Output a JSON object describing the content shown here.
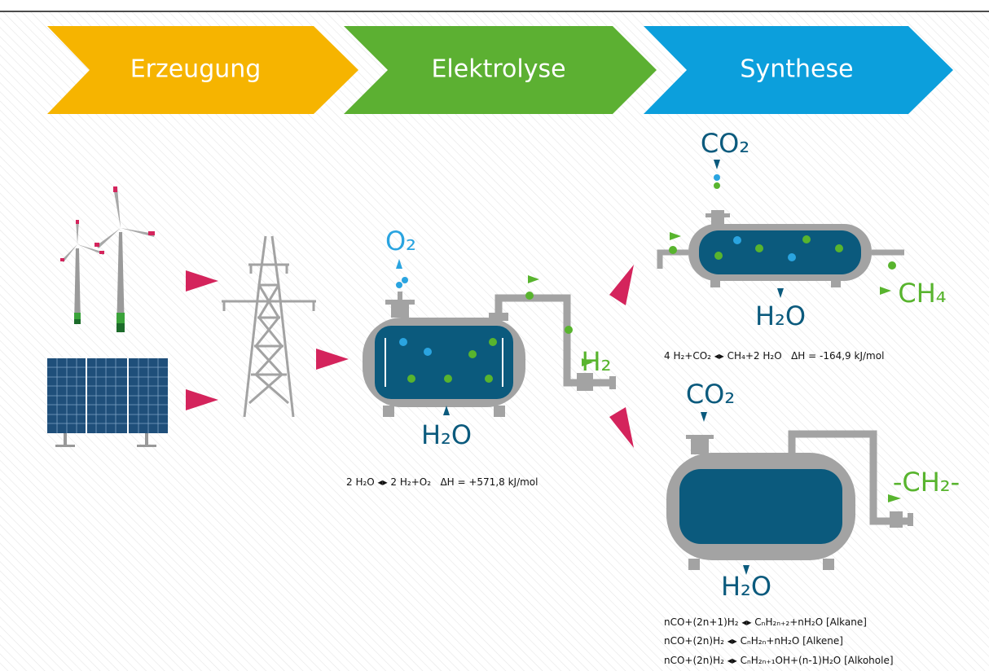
{
  "header": {
    "steps": [
      "Erzeugung",
      "Elektrolyse",
      "Synthese"
    ]
  },
  "electrolysis": {
    "output_o2": "O₂",
    "output_h2": "H₂",
    "input": "H₂O",
    "equation": "2 H₂O ◂▸ 2 H₂+O₂   ΔH = +571,8 kJ/mol"
  },
  "methanation": {
    "input": "CO₂",
    "water": "H₂O",
    "output": "CH₄",
    "equation": "4 H₂+CO₂ ◂▸ CH₄+2 H₂O   ΔH = -164,9 kJ/mol"
  },
  "fischer_tropsch": {
    "input": "CO₂",
    "water": "H₂O",
    "output": "-CH₂-",
    "equations": [
      "nCO+(2n+1)H₂ ◂▸ CₙH₂ₙ₊₂+nH₂O [Alkane]",
      "nCO+(2n)H₂ ◂▸ CₙH₂ₙ+nH₂O [Alkene]",
      "nCO+(2n)H₂ ◂▸ CₙH₂ₙ₊₁OH+(n-1)H₂O [Alkohole]"
    ]
  }
}
